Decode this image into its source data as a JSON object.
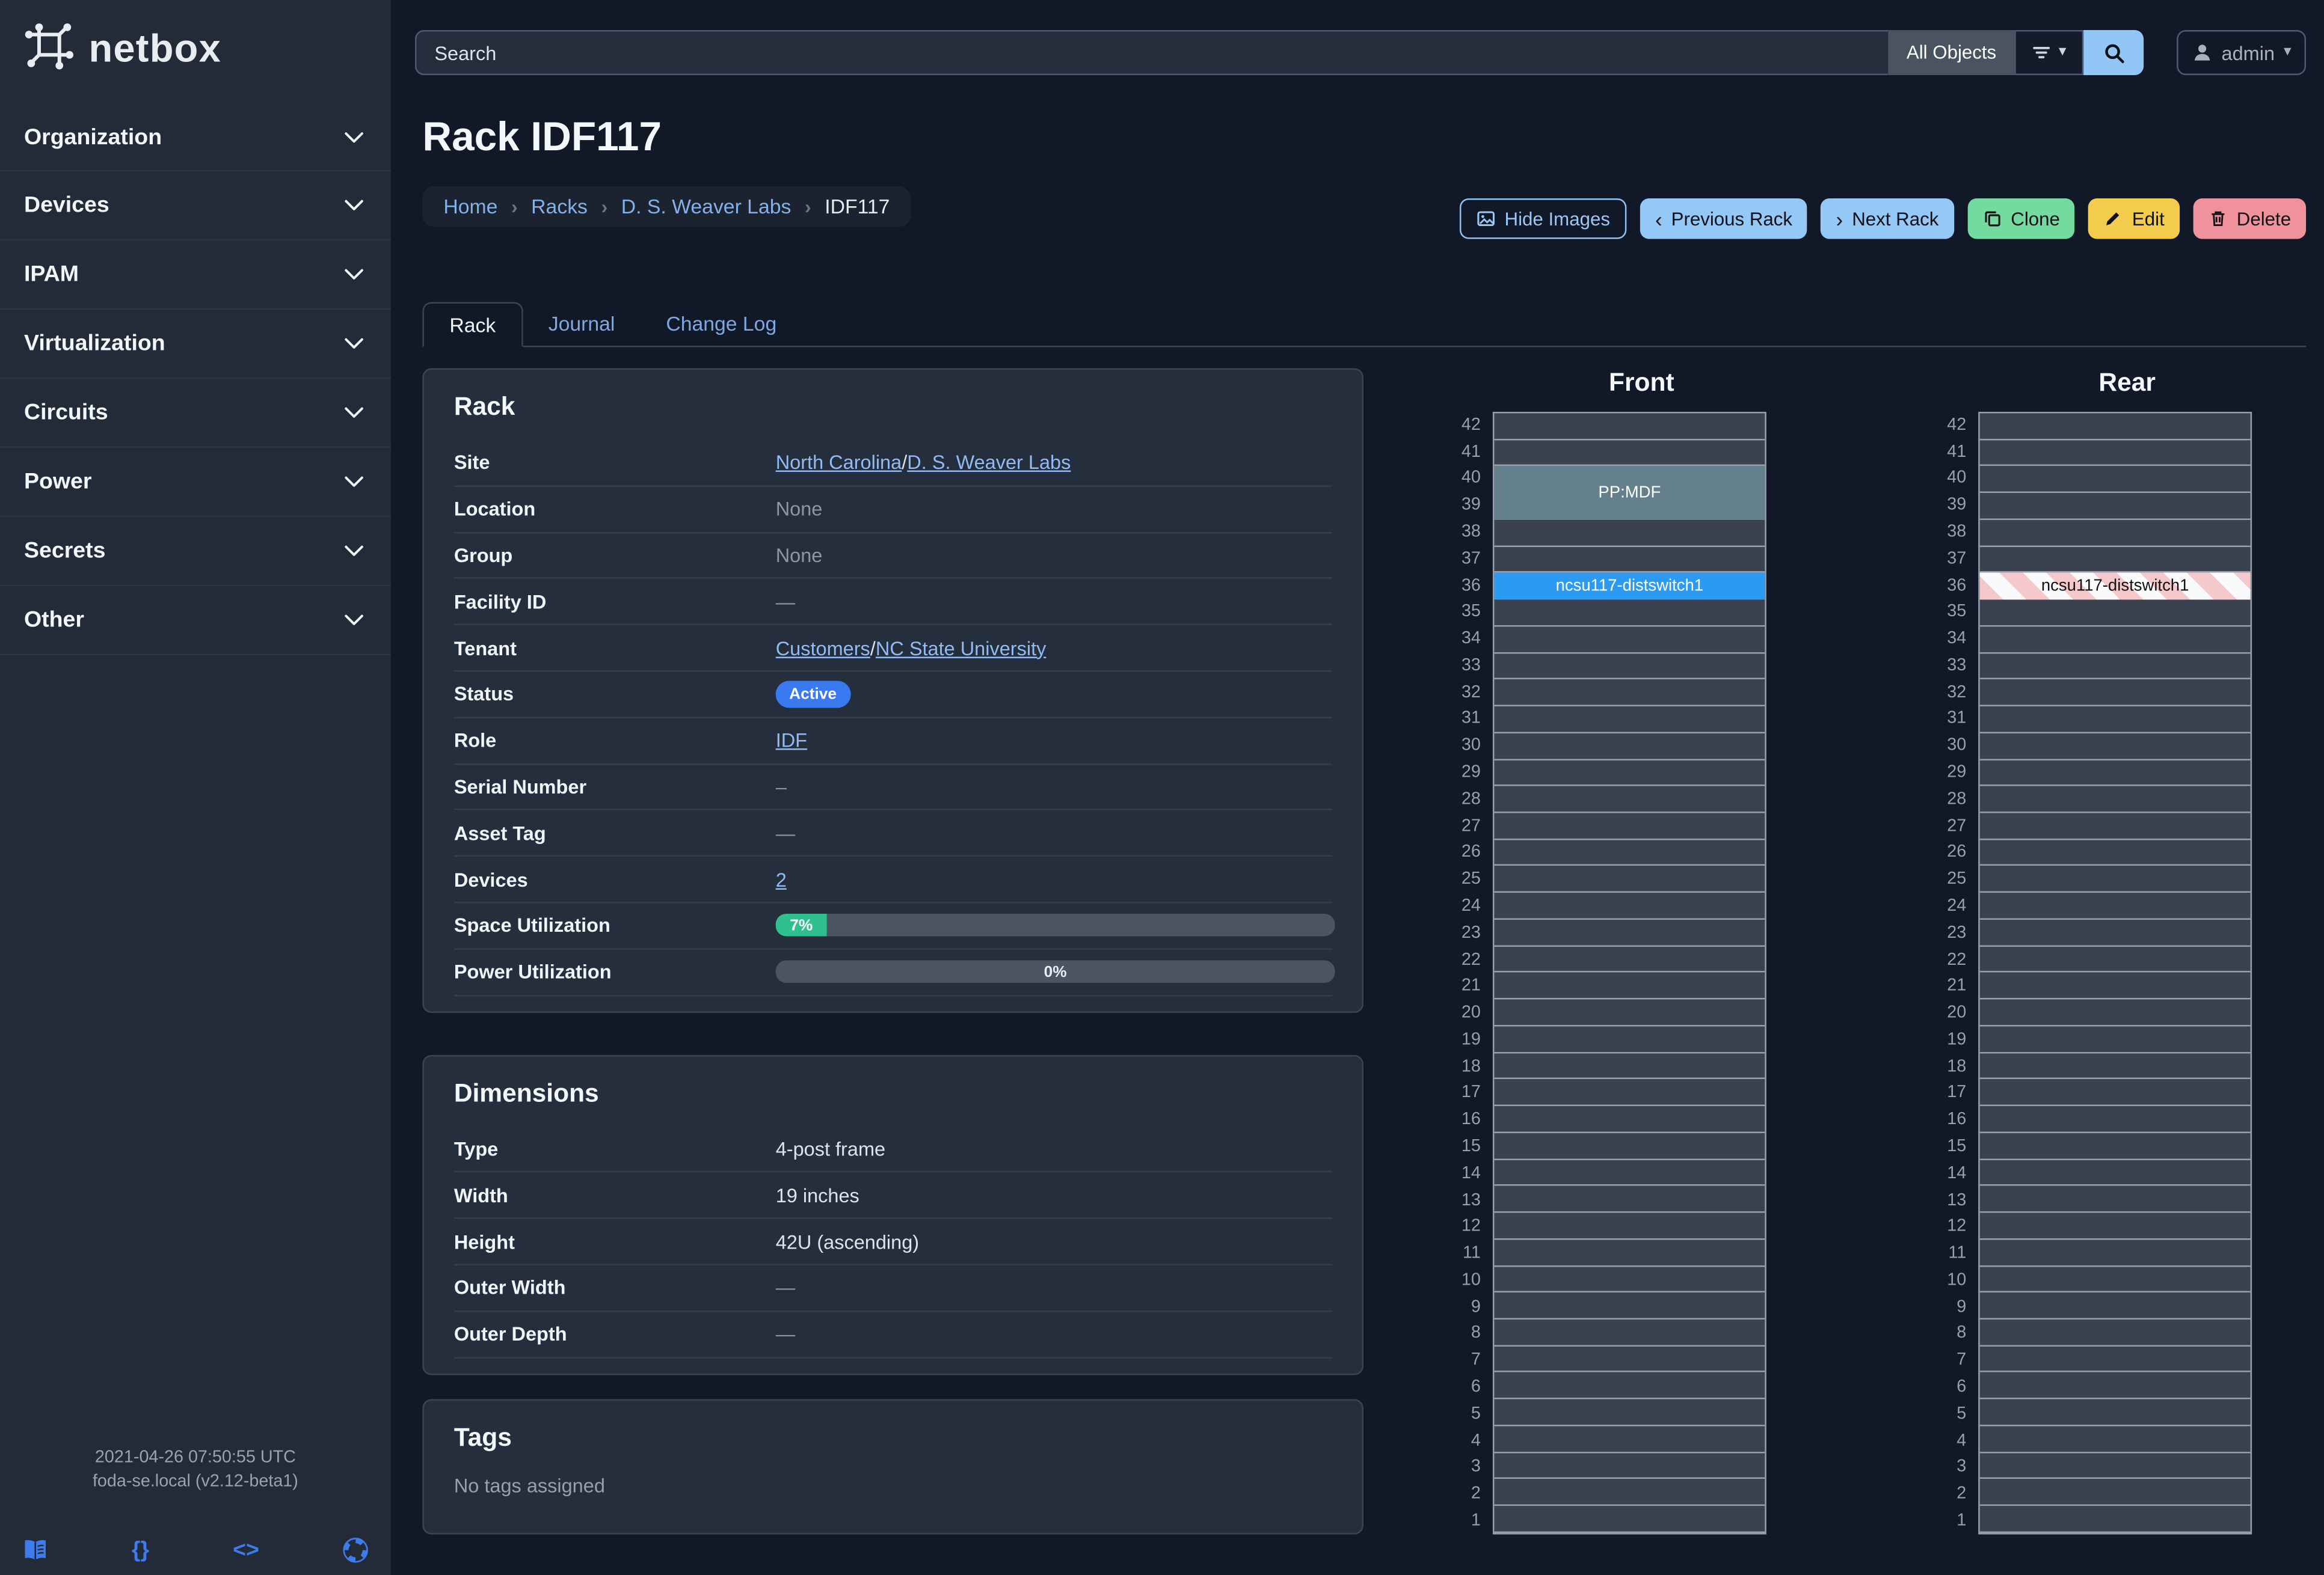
{
  "brand": {
    "name": "netbox"
  },
  "sidebar": {
    "items": [
      {
        "label": "Organization"
      },
      {
        "label": "Devices"
      },
      {
        "label": "IPAM"
      },
      {
        "label": "Virtualization"
      },
      {
        "label": "Circuits"
      },
      {
        "label": "Power"
      },
      {
        "label": "Secrets"
      },
      {
        "label": "Other"
      }
    ],
    "footer": {
      "timestamp": "2021-04-26 07:50:55 UTC",
      "instance": "foda-se.local (v2.12-beta1)",
      "icons": [
        {
          "name": "docs-icon"
        },
        {
          "name": "rest-api-icon",
          "glyph": "{}"
        },
        {
          "name": "code-icon",
          "glyph": "<>"
        },
        {
          "name": "help-icon"
        }
      ]
    }
  },
  "topbar": {
    "search_placeholder": "Search",
    "scope_label": "All Objects",
    "user": "admin"
  },
  "page": {
    "title": "Rack IDF117",
    "breadcrumb": {
      "separator": "›",
      "items": [
        {
          "label": "Home",
          "link": true
        },
        {
          "label": "Racks",
          "link": true
        },
        {
          "label": "D. S. Weaver Labs",
          "link": true
        },
        {
          "label": "IDF117",
          "link": false
        }
      ]
    },
    "actions": {
      "hide_images": "Hide Images",
      "previous": "Previous Rack",
      "next": "Next Rack",
      "clone": "Clone",
      "edit": "Edit",
      "delete": "Delete"
    },
    "tabs": [
      {
        "label": "Rack",
        "active": true
      },
      {
        "label": "Journal",
        "active": false
      },
      {
        "label": "Change Log",
        "active": false
      }
    ]
  },
  "rack_panel": {
    "title": "Rack",
    "rows": [
      {
        "label": "Site",
        "type": "links",
        "separator": " / ",
        "parts": [
          "North Carolina",
          "D. S. Weaver Labs"
        ]
      },
      {
        "label": "Location",
        "type": "muted",
        "value": "None"
      },
      {
        "label": "Group",
        "type": "muted",
        "value": "None"
      },
      {
        "label": "Facility ID",
        "type": "muted",
        "value": "—"
      },
      {
        "label": "Tenant",
        "type": "links",
        "separator": " / ",
        "parts": [
          "Customers",
          "NC State University"
        ]
      },
      {
        "label": "Status",
        "type": "badge",
        "value": "Active"
      },
      {
        "label": "Role",
        "type": "link",
        "value": "IDF"
      },
      {
        "label": "Serial Number",
        "type": "muted",
        "value": "–"
      },
      {
        "label": "Asset Tag",
        "type": "muted",
        "value": "—"
      },
      {
        "label": "Devices",
        "type": "link",
        "value": "2"
      },
      {
        "label": "Space Utilization",
        "type": "progress",
        "percent": 7,
        "value": "7%"
      },
      {
        "label": "Power Utilization",
        "type": "progress",
        "percent": 0,
        "value": "0%"
      }
    ]
  },
  "dimensions_panel": {
    "title": "Dimensions",
    "rows": [
      {
        "label": "Type",
        "type": "text",
        "value": "4-post frame"
      },
      {
        "label": "Width",
        "type": "text",
        "value": "19 inches"
      },
      {
        "label": "Height",
        "type": "text",
        "value": "42U (ascending)"
      },
      {
        "label": "Outer Width",
        "type": "muted",
        "value": "—"
      },
      {
        "label": "Outer Depth",
        "type": "muted",
        "value": "—"
      }
    ]
  },
  "tags_panel": {
    "title": "Tags",
    "empty": "No tags assigned"
  },
  "elevations": {
    "front": {
      "title": "Front",
      "u_height": 42,
      "devices": [
        {
          "name": "PP:MDF",
          "top_u": 40,
          "u_height": 2,
          "style": "solid",
          "color": "#65808d",
          "text_color": "#ffffff"
        },
        {
          "name": "ncsu117-distswitch1",
          "top_u": 36,
          "u_height": 1,
          "style": "solid",
          "color": "#2b9af0",
          "text_color": "#ffffff"
        }
      ]
    },
    "rear": {
      "title": "Rear",
      "u_height": 42,
      "devices": [
        {
          "name": "ncsu117-distswitch1",
          "top_u": 36,
          "u_height": 1,
          "style": "striped",
          "color": "#f5c8cb",
          "stripe_alt_color": "#f8fafc",
          "text_color": "#111111"
        }
      ]
    }
  },
  "colors": {
    "status_active": "#3a7af0",
    "progress_fill": "#2fc08f",
    "empty_unit": "#3a4250",
    "link": "#92bbf2"
  }
}
